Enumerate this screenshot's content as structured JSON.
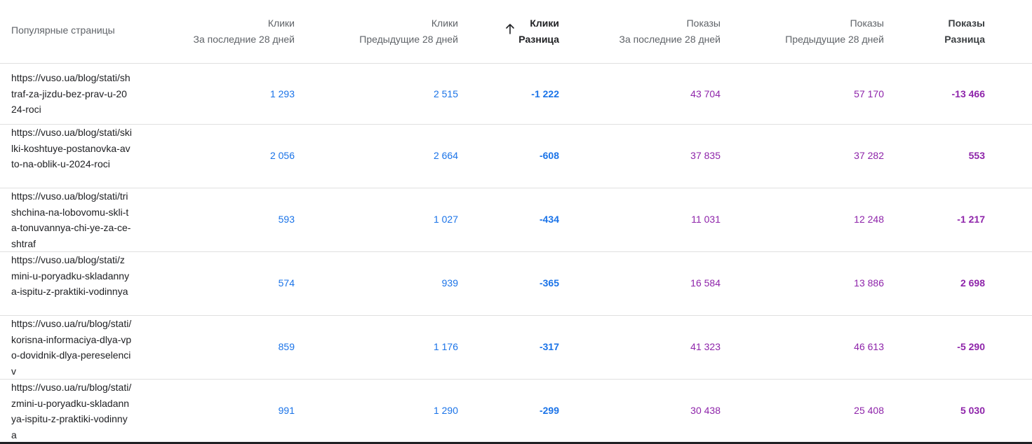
{
  "columns": [
    {
      "line1": "Популярные страницы",
      "line2": ""
    },
    {
      "line1": "Клики",
      "line2": "За последние 28 дней"
    },
    {
      "line1": "Клики",
      "line2": "Предыдущие 28 дней"
    },
    {
      "line1": "Клики",
      "line2": "Разница"
    },
    {
      "line1": "Показы",
      "line2": "За последние 28 дней"
    },
    {
      "line1": "Показы",
      "line2": "Предыдущие 28 дней"
    },
    {
      "line1": "Показы",
      "line2": "Разница"
    }
  ],
  "sort_icon": "arrow-up-icon",
  "rows": [
    {
      "url": "https://vuso.ua/blog/stati/shtraf-za-jizdu-bez-prav-u-2024-roci",
      "clicks_current": "1 293",
      "clicks_previous": "2 515",
      "clicks_diff": "-1 222",
      "impressions_current": "43 704",
      "impressions_previous": "57 170",
      "impressions_diff": "-13 466"
    },
    {
      "url": "https://vuso.ua/blog/stati/skilki-koshtuye-postanovka-avto-na-oblik-u-2024-roci",
      "clicks_current": "2 056",
      "clicks_previous": "2 664",
      "clicks_diff": "-608",
      "impressions_current": "37 835",
      "impressions_previous": "37 282",
      "impressions_diff": "553"
    },
    {
      "url": "https://vuso.ua/blog/stati/trishchina-na-lobovomu-skli-ta-tonuvannya-chi-ye-za-ce-shtraf",
      "clicks_current": "593",
      "clicks_previous": "1 027",
      "clicks_diff": "-434",
      "impressions_current": "11 031",
      "impressions_previous": "12 248",
      "impressions_diff": "-1 217"
    },
    {
      "url": "https://vuso.ua/blog/stati/zmini-u-poryadku-skladannya-ispitu-z-praktiki-vodinnya",
      "clicks_current": "574",
      "clicks_previous": "939",
      "clicks_diff": "-365",
      "impressions_current": "16 584",
      "impressions_previous": "13 886",
      "impressions_diff": "2 698"
    },
    {
      "url": "https://vuso.ua/ru/blog/stati/korisna-informaciya-dlya-vpo-dovidnik-dlya-pereselenciv",
      "clicks_current": "859",
      "clicks_previous": "1 176",
      "clicks_diff": "-317",
      "impressions_current": "41 323",
      "impressions_previous": "46 613",
      "impressions_diff": "-5 290"
    },
    {
      "url": "https://vuso.ua/ru/blog/stati/zmini-u-poryadku-skladannya-ispitu-z-praktiki-vodinnya",
      "clicks_current": "991",
      "clicks_previous": "1 290",
      "clicks_diff": "-299",
      "impressions_current": "30 438",
      "impressions_previous": "25 408",
      "impressions_diff": "5 030"
    }
  ],
  "colors": {
    "clicks": "#1a73e8",
    "impressions": "#8e24aa",
    "header_text": "#5f6368",
    "divider": "#e0e0e0"
  }
}
